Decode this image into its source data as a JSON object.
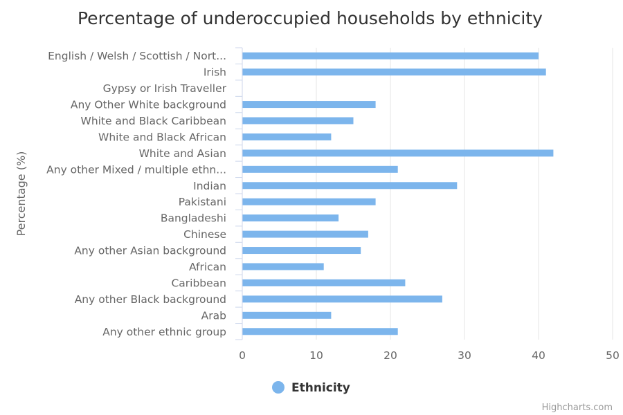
{
  "chart_data": {
    "type": "bar",
    "orientation": "horizontal",
    "title": "Percentage of underoccupied households by ethnicity",
    "ylabel": "Percentage (%)",
    "xlim": [
      0,
      50
    ],
    "ticks": [
      "0",
      "10",
      "20",
      "30",
      "40",
      "50"
    ],
    "grid": true,
    "legend_position": "bottom-center",
    "color": "#7cb5ec",
    "categories": [
      "English / Welsh / Scottish / Nort...",
      "Irish",
      "Gypsy or Irish Traveller",
      "Any Other White background",
      "White and Black Caribbean",
      "White and Black African",
      "White and Asian",
      "Any other Mixed / multiple ethn...",
      "Indian",
      "Pakistani",
      "Bangladeshi",
      "Chinese",
      "Any other Asian background",
      "African",
      "Caribbean",
      "Any other Black background",
      "Arab",
      "Any other ethnic group"
    ],
    "series": [
      {
        "name": "Ethnicity",
        "values": [
          40,
          41,
          0,
          18,
          15,
          12,
          42,
          21,
          29,
          18,
          13,
          17,
          16,
          11,
          22,
          27,
          12,
          21
        ]
      }
    ]
  },
  "credits": "Highcharts.com"
}
